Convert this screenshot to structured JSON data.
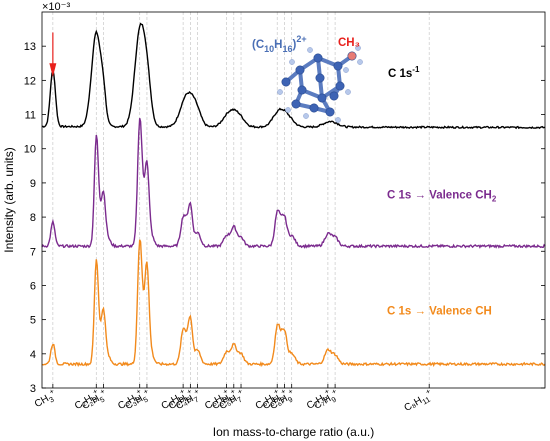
{
  "chart_data": {
    "type": "line",
    "xlabel": "Ion mass-to-charge ratio (a.u.)",
    "ylabel": "Intensity (arb. units)",
    "y_exponent": "×10⁻³",
    "ylim": [
      3,
      14
    ],
    "yticks": [
      3,
      4,
      5,
      6,
      7,
      8,
      9,
      10,
      11,
      12,
      13
    ],
    "xlim": [
      12,
      151
    ],
    "grid": false,
    "ion_labels": [
      {
        "base": "CH",
        "sub": "3",
        "sup": "+",
        "mz": 15
      },
      {
        "base": "C₂H",
        "sub": "3",
        "sup": "+",
        "mz": 27
      },
      {
        "base": "C₂H",
        "sub": "5",
        "sup": "+",
        "mz": 29
      },
      {
        "base": "C₃H",
        "sub": "3",
        "sup": "+",
        "mz": 39
      },
      {
        "base": "C₃H",
        "sub": "5",
        "sup": "+",
        "mz": 41
      },
      {
        "base": "C₄H",
        "sub": "3",
        "sup": "+",
        "mz": 51
      },
      {
        "base": "C₄H",
        "sub": "5",
        "sup": "+",
        "mz": 53
      },
      {
        "base": "C₄H",
        "sub": "7",
        "sup": "+",
        "mz": 55
      },
      {
        "base": "C₅H",
        "sub": "3",
        "sup": "+",
        "mz": 63
      },
      {
        "base": "C₅H",
        "sub": "5",
        "sup": "+",
        "mz": 65
      },
      {
        "base": "C₅H",
        "sub": "7",
        "sup": "+",
        "mz": 67
      },
      {
        "base": "C₆H",
        "sub": "5",
        "sup": "+",
        "mz": 77
      },
      {
        "base": "C₆H",
        "sub": "7",
        "sup": "+",
        "mz": 79
      },
      {
        "base": "C₆H",
        "sub": "9",
        "sup": "+",
        "mz": 81
      },
      {
        "base": "C₇H",
        "sub": "7",
        "sup": "+",
        "mz": 91
      },
      {
        "base": "C₇H",
        "sub": "9",
        "sup": "+",
        "mz": 93
      },
      {
        "base": "C₈H",
        "sub": "11",
        "sup": "+",
        "mz": 119
      }
    ],
    "series": [
      {
        "name": "C 1s⁻¹",
        "color": "#000000",
        "baseline": 10.65,
        "peaks": [
          [
            15,
            1.65,
            0.7
          ],
          [
            27,
            2.75,
            1.3
          ],
          [
            29,
            0.65,
            0.7
          ],
          [
            39,
            2.7,
            1.4
          ],
          [
            41,
            1.2,
            1.1
          ],
          [
            51,
            0.45,
            1.4
          ],
          [
            53,
            0.75,
            1.5
          ],
          [
            55,
            0.3,
            1.2
          ],
          [
            63,
            0.25,
            1.4
          ],
          [
            65,
            0.35,
            1.4
          ],
          [
            67,
            0.2,
            1.3
          ],
          [
            77,
            0.32,
            1.5
          ],
          [
            79,
            0.32,
            1.5
          ],
          [
            81,
            0.1,
            1.3
          ],
          [
            91,
            0.12,
            1.6
          ],
          [
            93,
            0.08,
            1.5
          ]
        ]
      },
      {
        "name": "C 1s → Valence CH₂",
        "color": "#7b2b8e",
        "baseline": 7.15,
        "peaks": [
          [
            15,
            0.7,
            0.55
          ],
          [
            27,
            3.1,
            0.55
          ],
          [
            28,
            0.6,
            0.6
          ],
          [
            29,
            1.35,
            0.55
          ],
          [
            30,
            0.25,
            0.8
          ],
          [
            39,
            3.55,
            0.6
          ],
          [
            40,
            0.8,
            0.6
          ],
          [
            41,
            2.15,
            0.55
          ],
          [
            42,
            0.35,
            0.8
          ],
          [
            51,
            0.75,
            0.7
          ],
          [
            52,
            0.35,
            0.7
          ],
          [
            53,
            1.1,
            0.6
          ],
          [
            55,
            0.4,
            0.8
          ],
          [
            63,
            0.3,
            0.8
          ],
          [
            65,
            0.55,
            0.8
          ],
          [
            67,
            0.25,
            0.8
          ],
          [
            77,
            0.9,
            0.7
          ],
          [
            78,
            0.3,
            0.7
          ],
          [
            79,
            0.75,
            0.7
          ],
          [
            81,
            0.3,
            0.9
          ],
          [
            91,
            0.35,
            0.9
          ],
          [
            93,
            0.25,
            0.9
          ]
        ]
      },
      {
        "name": "C 1s → Valence CH",
        "color": "#f28a1c",
        "baseline": 3.7,
        "peaks": [
          [
            15,
            0.6,
            0.55
          ],
          [
            27,
            2.95,
            0.55
          ],
          [
            28,
            0.5,
            0.6
          ],
          [
            29,
            1.4,
            0.55
          ],
          [
            30,
            0.25,
            0.8
          ],
          [
            39,
            3.45,
            0.6
          ],
          [
            40,
            0.8,
            0.6
          ],
          [
            41,
            2.65,
            0.55
          ],
          [
            42,
            0.35,
            0.8
          ],
          [
            51,
            0.9,
            0.7
          ],
          [
            52,
            0.35,
            0.7
          ],
          [
            53,
            1.25,
            0.6
          ],
          [
            55,
            0.4,
            0.8
          ],
          [
            63,
            0.35,
            0.8
          ],
          [
            65,
            0.55,
            0.8
          ],
          [
            67,
            0.3,
            0.8
          ],
          [
            77,
            1.0,
            0.7
          ],
          [
            78,
            0.35,
            0.7
          ],
          [
            79,
            0.85,
            0.7
          ],
          [
            81,
            0.3,
            0.9
          ],
          [
            91,
            0.4,
            0.9
          ],
          [
            93,
            0.25,
            0.9
          ]
        ]
      }
    ],
    "annotations": {
      "molecule_formula": {
        "base": "(C",
        "sub1": "10",
        "mid": "H",
        "sub2": "16",
        "close": ")",
        "sup": "2+"
      },
      "methyl_label": "CH₃",
      "series_labels": [
        {
          "text": "C 1s",
          "sup": "-1",
          "color": "#000000"
        },
        {
          "text": "C 1s → Valence CH",
          "sub": "2",
          "color": "#7b2b8e"
        },
        {
          "text": "C 1s → Valence CH",
          "sub": "",
          "color": "#f28a1c"
        }
      ],
      "arrow_at_mz": 15,
      "arrow_color": "#e8201c"
    }
  }
}
